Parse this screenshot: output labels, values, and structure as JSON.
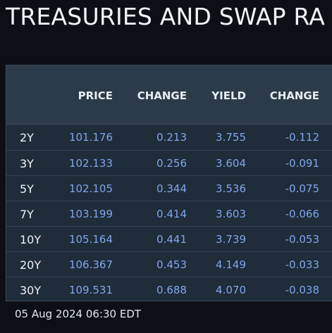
{
  "title": "TREASURIES AND SWAP RA",
  "columns": {
    "price": "PRICE",
    "change": "CHANGE",
    "yield": "YIELD",
    "yield_change": "CHANGE"
  },
  "rows": [
    {
      "tenor": "2Y",
      "price": "101.176",
      "change": "0.213",
      "yield": "3.755",
      "yield_change": "-0.112"
    },
    {
      "tenor": "3Y",
      "price": "102.133",
      "change": "0.256",
      "yield": "3.604",
      "yield_change": "-0.091"
    },
    {
      "tenor": "5Y",
      "price": "102.105",
      "change": "0.344",
      "yield": "3.536",
      "yield_change": "-0.075"
    },
    {
      "tenor": "7Y",
      "price": "103.199",
      "change": "0.414",
      "yield": "3.603",
      "yield_change": "-0.066"
    },
    {
      "tenor": "10Y",
      "price": "105.164",
      "change": "0.441",
      "yield": "3.739",
      "yield_change": "-0.053"
    },
    {
      "tenor": "20Y",
      "price": "106.367",
      "change": "0.453",
      "yield": "4.149",
      "yield_change": "-0.033"
    },
    {
      "tenor": "30Y",
      "price": "109.531",
      "change": "0.688",
      "yield": "4.070",
      "yield_change": "-0.038"
    }
  ],
  "timestamp": "05 Aug 2024 06:30 EDT",
  "colors": {
    "background": "#0c1016",
    "panel": "#1f2c39",
    "header": "#2b3b4a",
    "value": "#7fa6ee"
  }
}
